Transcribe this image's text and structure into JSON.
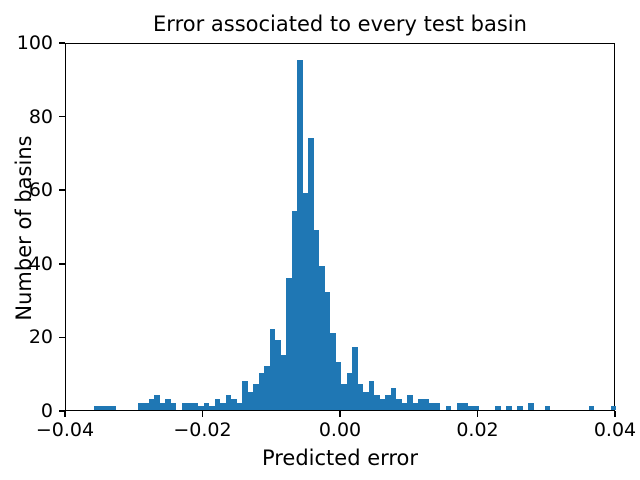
{
  "chart_data": {
    "type": "bar",
    "subtype": "histogram",
    "title": "Error associated to every test basin",
    "xlabel": "Predicted error",
    "ylabel": "Number of basins",
    "xlim": [
      -0.04,
      0.04
    ],
    "ylim": [
      0,
      100
    ],
    "grid": false,
    "legend": "none",
    "bar_color": "#1f77b4",
    "text_color": "#000000",
    "spine_color": "#000000",
    "x_tick_values": [
      -0.04,
      -0.02,
      0.0,
      0.02,
      0.04
    ],
    "x_tick_labels": [
      "−0.04",
      "−0.02",
      "0.00",
      "0.02",
      "0.04"
    ],
    "y_tick_values": [
      0,
      20,
      40,
      60,
      80,
      100
    ],
    "y_tick_labels": [
      "0",
      "20",
      "40",
      "60",
      "80",
      "100"
    ],
    "bin_start": -0.0392,
    "bin_width": 0.0008,
    "bin_counts": [
      0,
      0,
      0,
      0,
      1,
      1,
      1,
      1,
      0,
      0,
      0,
      0,
      2,
      2,
      3,
      4,
      2,
      3,
      2,
      0,
      2,
      2,
      2,
      1,
      2,
      1,
      3,
      2,
      4,
      3,
      2,
      8,
      5,
      7,
      10,
      12,
      22,
      19,
      15,
      36,
      54,
      95,
      59,
      74,
      49,
      39,
      32,
      21,
      13,
      7,
      10,
      17,
      7,
      5,
      8,
      4,
      3,
      4,
      6,
      3,
      2,
      4,
      2,
      3,
      3,
      2,
      2,
      0,
      1,
      0,
      2,
      2,
      1,
      1,
      0,
      0,
      0,
      1,
      0,
      1,
      0,
      1,
      0,
      2,
      0,
      0,
      1,
      0,
      0,
      0,
      0,
      0,
      0,
      0,
      1,
      0,
      0,
      0,
      1
    ],
    "peak_value": 95,
    "peak_bin_left_edge": -0.0064
  }
}
